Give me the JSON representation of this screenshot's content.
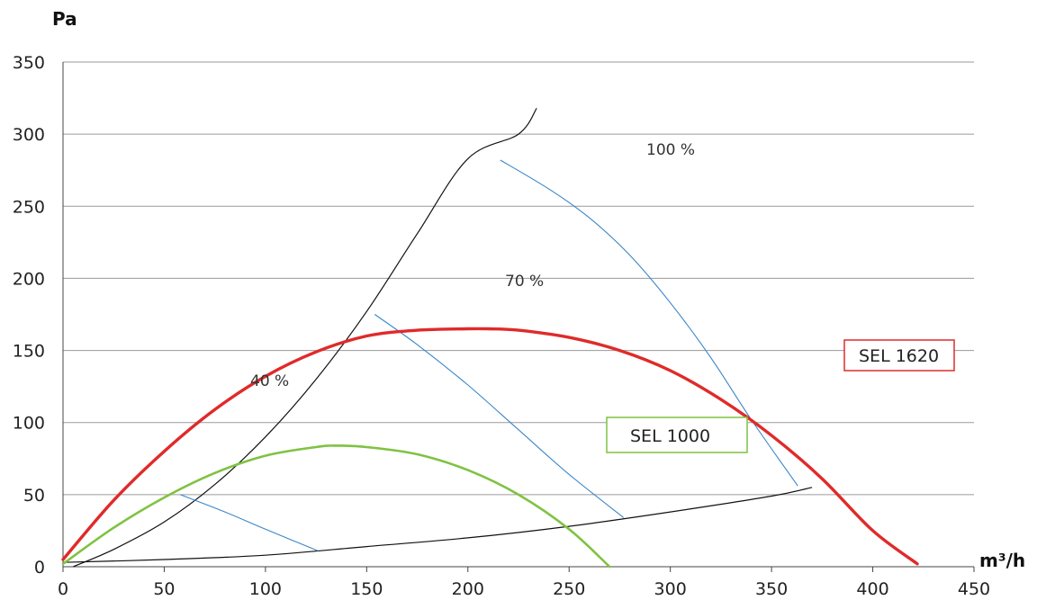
{
  "chart_data": {
    "type": "line",
    "title": "",
    "xlabel": "m³/h",
    "ylabel": "Pa",
    "xlim": [
      0,
      450
    ],
    "ylim": [
      0,
      350
    ],
    "x_ticks": [
      0,
      50,
      100,
      150,
      200,
      250,
      300,
      350,
      400,
      450
    ],
    "y_ticks": [
      0,
      50,
      100,
      150,
      200,
      250,
      300,
      350
    ],
    "grid": true,
    "series": [
      {
        "name": "SEL 1620",
        "color": "#e02a2a",
        "x": [
          0,
          25,
          50,
          75,
          100,
          125,
          150,
          175,
          200,
          210,
          225,
          250,
          275,
          300,
          325,
          350,
          375,
          400,
          422
        ],
        "y": [
          5,
          46,
          80,
          109,
          132,
          149,
          160,
          164,
          165,
          165,
          164,
          159,
          150,
          136,
          116,
          91,
          61,
          25,
          2
        ]
      },
      {
        "name": "SEL 1000",
        "color": "#7fc241",
        "x": [
          0,
          25,
          50,
          75,
          100,
          125,
          135,
          150,
          175,
          200,
          225,
          250,
          270
        ],
        "y": [
          2,
          27,
          48,
          65,
          77,
          83,
          84,
          83,
          78,
          67,
          50,
          26,
          0
        ]
      }
    ],
    "reference_lines": [
      {
        "label": "100 %",
        "color": "#3a86c8",
        "x": [
          216,
          240,
          260,
          280,
          300,
          320,
          340,
          363
        ],
        "y": [
          282,
          262,
          242,
          216,
          183,
          145,
          102,
          56
        ]
      },
      {
        "label": "70 %",
        "color": "#3a86c8",
        "x": [
          154,
          175,
          200,
          225,
          250,
          277
        ],
        "y": [
          175,
          154,
          126,
          95,
          64,
          34
        ]
      },
      {
        "label": "40 %",
        "color": "#3a86c8",
        "x": [
          58,
          80,
          100,
          126
        ],
        "y": [
          50,
          38,
          26,
          11
        ]
      }
    ],
    "system_curves": [
      {
        "color": "#111111",
        "x": [
          5,
          25,
          50,
          75,
          100,
          125,
          150,
          175,
          200,
          225,
          234
        ],
        "y": [
          0,
          12,
          31,
          57,
          90,
          130,
          177,
          231,
          283,
          300,
          318
        ]
      },
      {
        "color": "#111111",
        "x": [
          0,
          50,
          100,
          150,
          200,
          250,
          300,
          350,
          370
        ],
        "y": [
          3,
          5,
          8,
          14,
          20,
          28,
          38,
          49,
          55
        ]
      }
    ],
    "annotations": [
      "100 %",
      "70 %",
      "40 %"
    ]
  },
  "legend": {
    "sel1620": {
      "label": "SEL 1620",
      "color": "#e02a2a"
    },
    "sel1000": {
      "label": "SEL 1000",
      "color": "#7fc241"
    }
  }
}
